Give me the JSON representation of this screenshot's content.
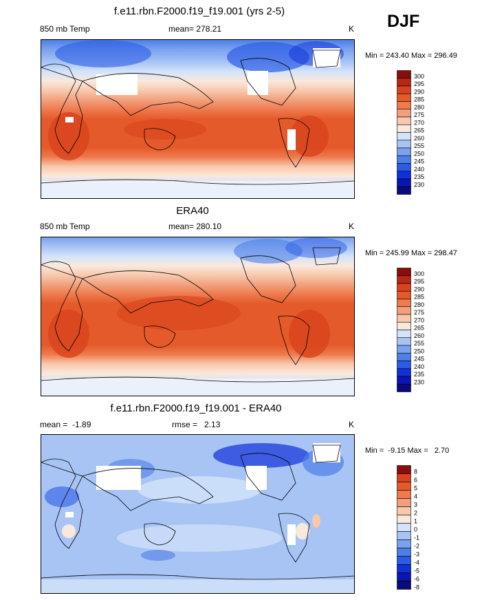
{
  "season": "DJF",
  "colors": {
    "temp_scale": [
      "#0a0a7a",
      "#0b14b4",
      "#1030d8",
      "#2c5ce6",
      "#4d7fe8",
      "#7aa2ee",
      "#a7c4f4",
      "#d3e3fa",
      "#fbe8dc",
      "#f8c8ac",
      "#f2a07c",
      "#ee7a4e",
      "#e55a2a",
      "#d8431d",
      "#b42814",
      "#8a0c0c"
    ],
    "diff_scale": [
      "#0a0a7a",
      "#0b14b4",
      "#1030d8",
      "#2c5ce6",
      "#4d7fe8",
      "#7aa2ee",
      "#a7c4f4",
      "#d3e3fa",
      "#fbe8dc",
      "#f8c8ac",
      "#f2a07c",
      "#ee7a4e",
      "#e55a2a",
      "#d8431d",
      "#8a0c0c"
    ]
  },
  "panels": [
    {
      "title": "f.e11.rbn.F2000.f19_f19.001 (yrs 2-5)",
      "left_label": "850 mb Temp",
      "center_label": "mean= 278.21",
      "units": "K",
      "minmax": "Min = 243.40 Max = 296.49"
    },
    {
      "title": "ERA40",
      "left_label": "850 mb Temp",
      "center_label": "mean= 280.10",
      "units": "K",
      "minmax": "Min = 245.99 Max = 298.47"
    },
    {
      "title": "f.e11.rbn.F2000.f19_f19.001 - ERA40",
      "left_label": "mean =  -1.89",
      "center_label": "rmse =   2.13",
      "units": "K",
      "minmax": "Min =  -9.15 Max =   2.70"
    }
  ],
  "chart_data": [
    {
      "type": "heatmap",
      "title": "f.e11.rbn.F2000.f19_f19.001 (yrs 2-5)",
      "variable": "850 mb Temp",
      "units": "K",
      "mean": 278.21,
      "min": 243.4,
      "max": 296.49,
      "colorbar_levels": [
        "300",
        "295",
        "290",
        "285",
        "280",
        "275",
        "270",
        "265",
        "260",
        "255",
        "250",
        "245",
        "240",
        "235",
        "230"
      ]
    },
    {
      "type": "heatmap",
      "title": "ERA40",
      "variable": "850 mb Temp",
      "units": "K",
      "mean": 280.1,
      "min": 245.99,
      "max": 298.47,
      "colorbar_levels": [
        "300",
        "295",
        "290",
        "285",
        "280",
        "275",
        "270",
        "265",
        "260",
        "255",
        "250",
        "245",
        "240",
        "235",
        "230"
      ]
    },
    {
      "type": "heatmap",
      "title": "f.e11.rbn.F2000.f19_f19.001 - ERA40",
      "units": "K",
      "mean": -1.89,
      "rmse": 2.13,
      "min": -9.15,
      "max": 2.7,
      "colorbar_levels": [
        "8",
        "6",
        "5",
        "4",
        "3",
        "2",
        "1",
        "0",
        "-1",
        "-2",
        "-3",
        "-4",
        "-5",
        "-6",
        "-8"
      ]
    }
  ]
}
